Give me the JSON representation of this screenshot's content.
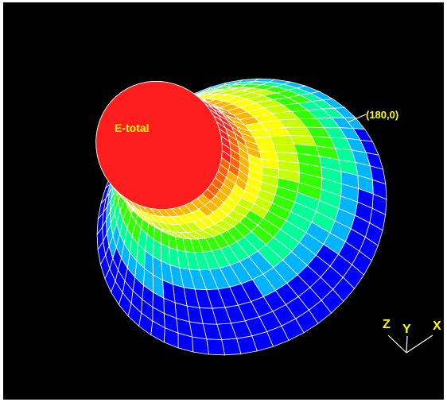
{
  "plot": {
    "surface_label": "E-total",
    "point_label": "(180,0)",
    "background_color": "#000000",
    "mesh_color": "#ffffff",
    "label_color": "#ffff00",
    "colormap": [
      "#0000ff",
      "#00b4ff",
      "#00ff96",
      "#32ff00",
      "#c8ff00",
      "#ffff00",
      "#ffb400",
      "#ff6400",
      "#ff1e1e"
    ]
  },
  "axes": {
    "z_label": "Z",
    "y_label": "Y",
    "x_label": "X"
  }
}
